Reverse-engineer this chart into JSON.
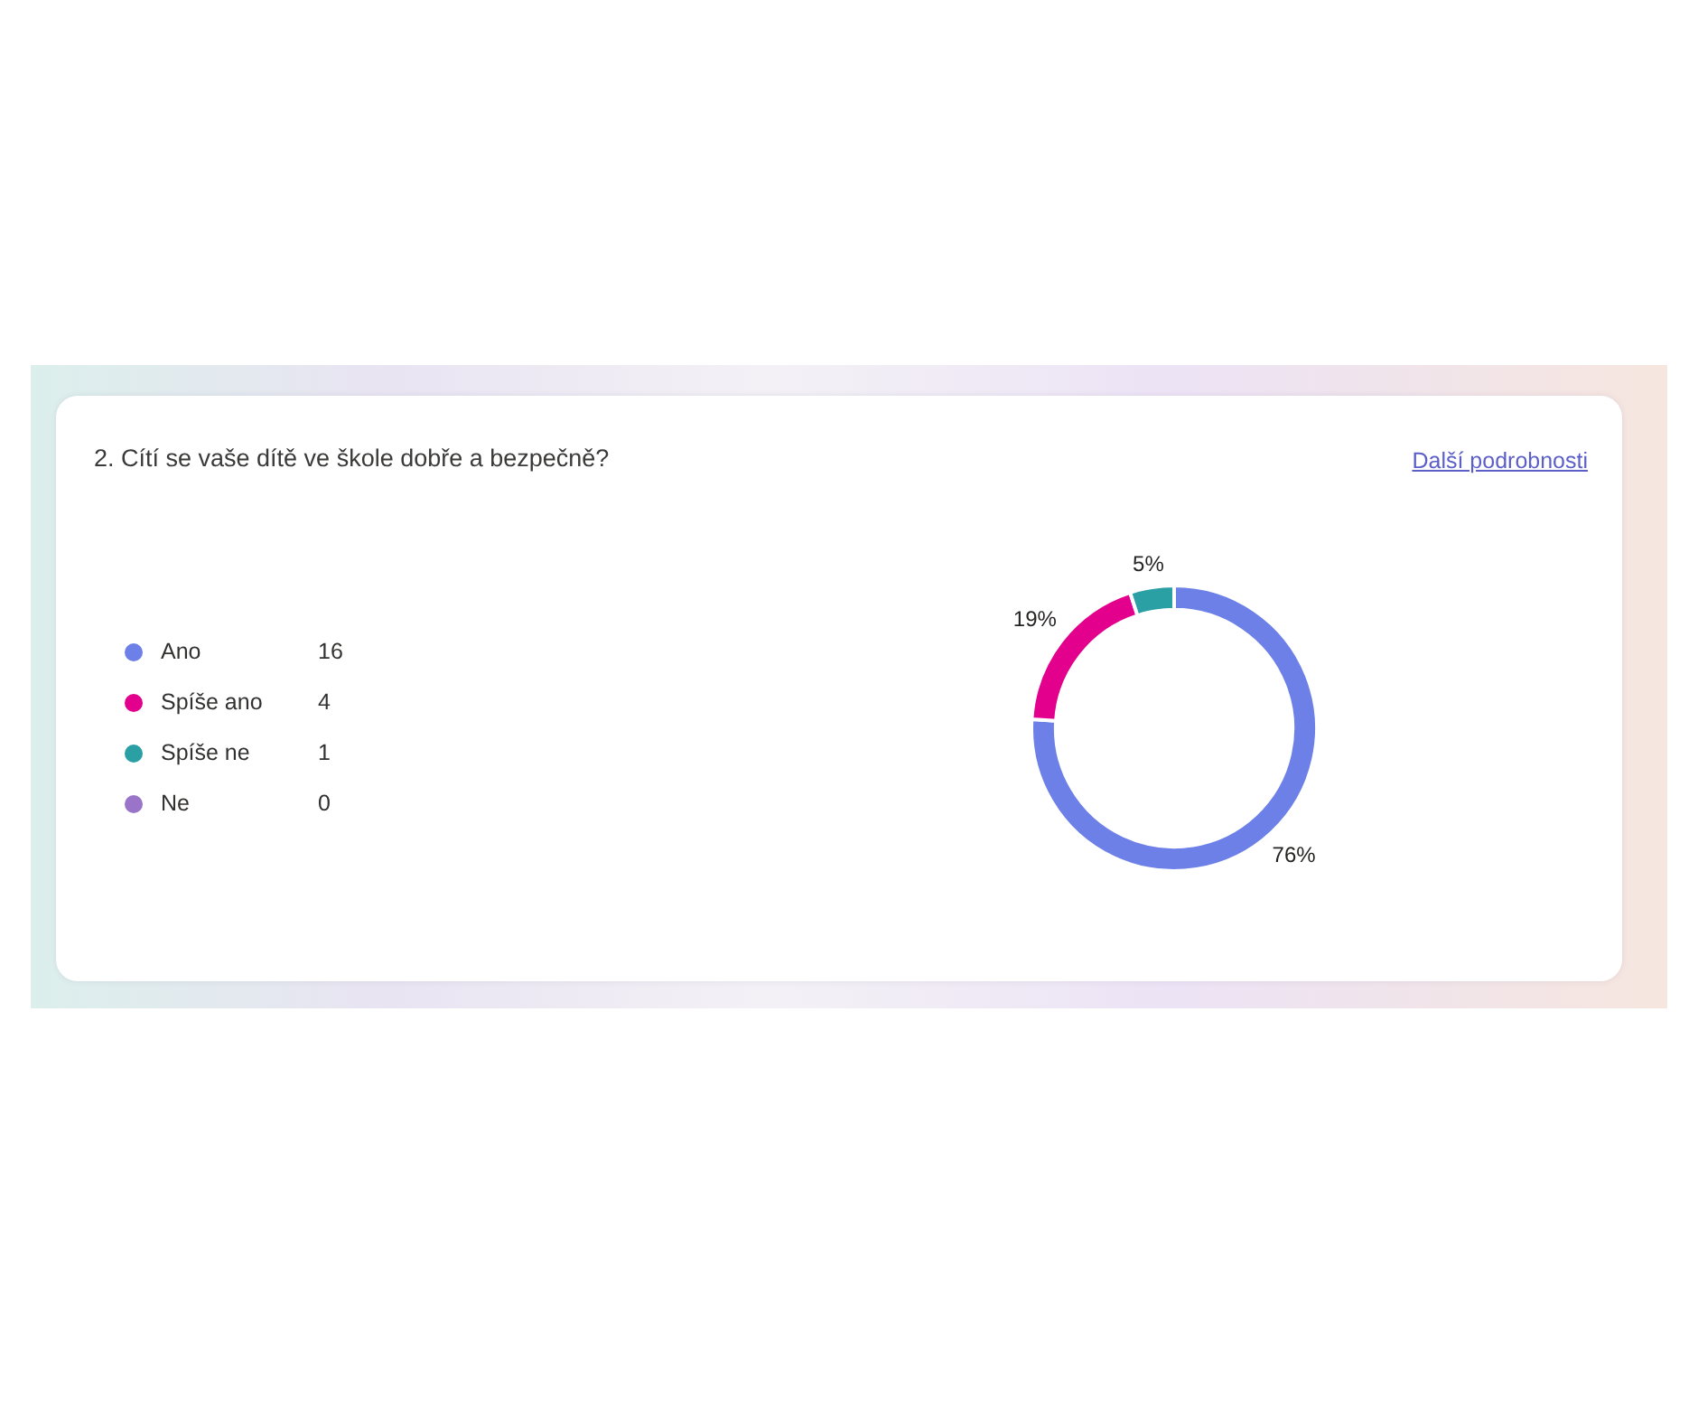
{
  "chart_data": {
    "type": "donut",
    "title": "2. Cítí se vaše dítě ve škole dobře a bezpečně?",
    "categories": [
      "Ano",
      "Spíše ano",
      "Spíše ne",
      "Ne"
    ],
    "values": [
      76,
      19,
      5,
      0
    ],
    "colors": [
      "#6c80e8",
      "#e3008c",
      "#2aa0a4",
      "#9a74c9"
    ],
    "value_labels": [
      "76%",
      "19%",
      "5%",
      null
    ],
    "legend": "left",
    "annotations": [
      "Další podrobnosti",
      {
        "text": "16",
        "x": "Ano"
      },
      {
        "text": "4",
        "x": "Spíše ano"
      },
      {
        "text": "1",
        "x": "Spíše ne"
      },
      {
        "text": "0",
        "x": "Ne"
      }
    ]
  }
}
